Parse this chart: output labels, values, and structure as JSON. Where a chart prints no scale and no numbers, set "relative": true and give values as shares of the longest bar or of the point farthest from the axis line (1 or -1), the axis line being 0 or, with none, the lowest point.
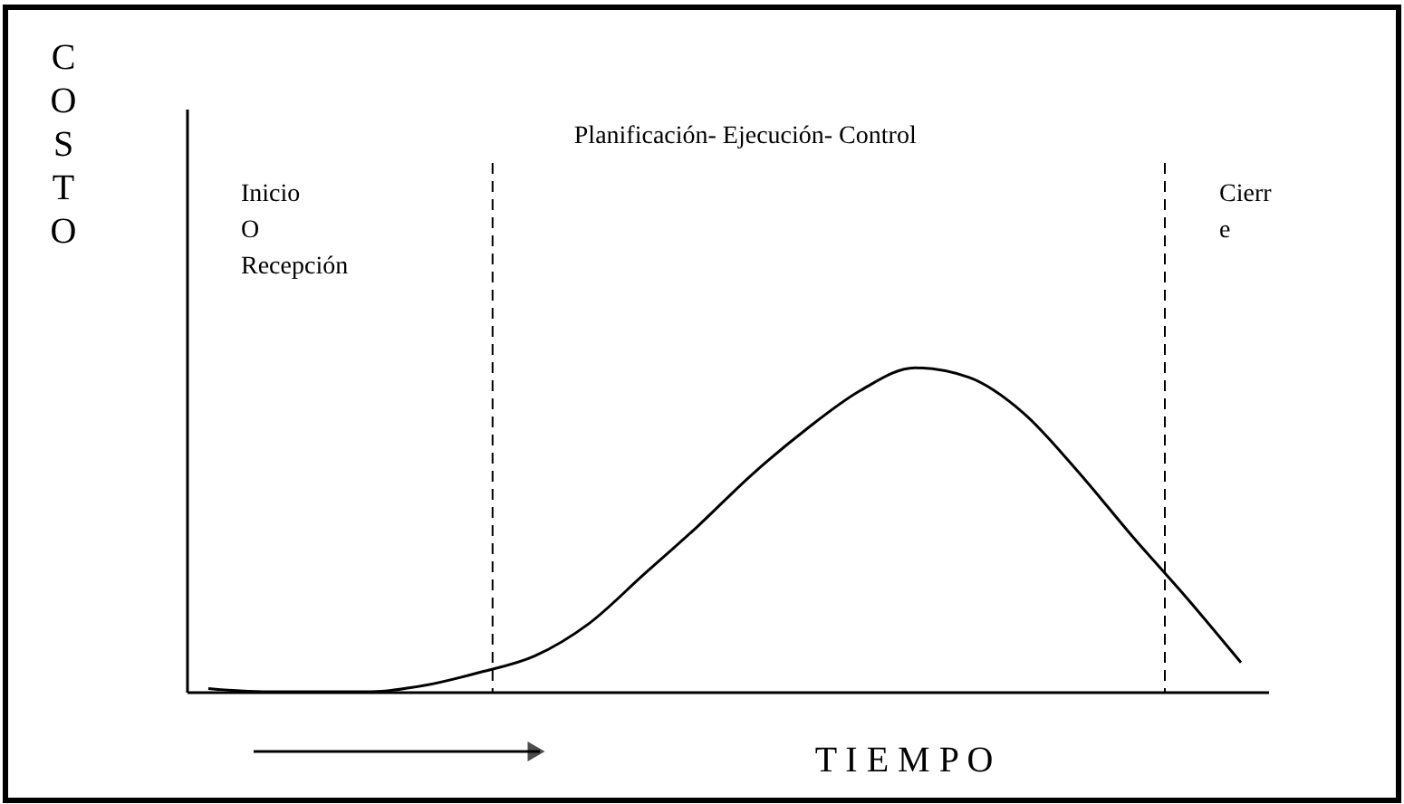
{
  "chart_data": {
    "type": "line",
    "relative": true,
    "xlabel": "T I E M P O",
    "ylabel": "C\nO\nS\nT\nO",
    "categories": [
      null,
      null,
      null,
      null,
      null,
      null,
      null,
      null,
      null,
      null,
      null,
      null,
      null,
      null,
      null,
      null,
      null,
      null,
      null,
      null
    ],
    "series": [
      {
        "color": "#000000",
        "values": [
          0.01,
          0,
          0,
          0,
          0.02,
          0.06,
          0.11,
          0.21,
          0.36,
          0.51,
          0.67,
          0.81,
          0.93,
          1,
          0.97,
          0.86,
          0.68,
          0.48,
          0.29,
          0.09
        ]
      }
    ],
    "annotations": [
      "Inicio\nO\nRecepción",
      "Planificación- Ejecución- Control",
      "Cierr\ne"
    ],
    "grid": false,
    "marker": "none",
    "line_style": "solid"
  }
}
